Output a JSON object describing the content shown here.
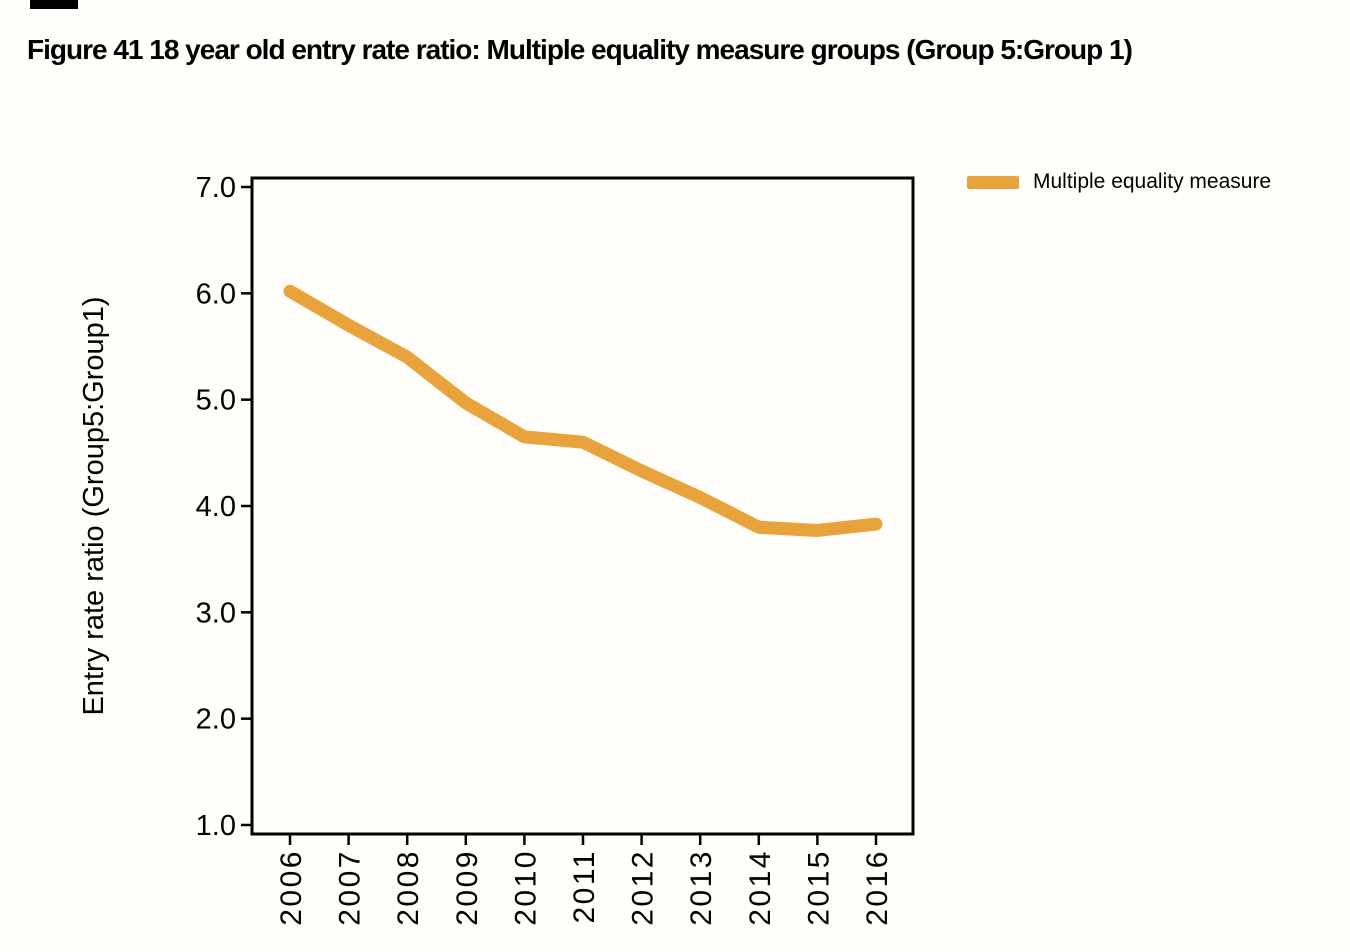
{
  "title": "Figure 41 18 year old entry rate ratio: Multiple equality measure groups (Group 5:Group 1)",
  "legend": {
    "label": "Multiple equality measure",
    "swatch_color": "#E8A33C"
  },
  "colors": {
    "line": "#E8A33C",
    "axis": "#000000",
    "text": "#000000",
    "background": "#fffefa"
  },
  "chart_data": {
    "type": "line",
    "title": "Figure 41 18 year old entry rate ratio: Multiple equality measure groups (Group 5:Group 1)",
    "xlabel": "",
    "ylabel": "Entry rate ratio (Group5:Group1)",
    "categories": [
      "2006",
      "2007",
      "2008",
      "2009",
      "2010",
      "2011",
      "2012",
      "2013",
      "2014",
      "2015",
      "2016"
    ],
    "series": [
      {
        "name": "Multiple equality measure",
        "color": "#E8A33C",
        "values": [
          6.02,
          5.7,
          5.4,
          4.97,
          4.65,
          4.6,
          4.33,
          4.08,
          3.8,
          3.77,
          3.83
        ]
      }
    ],
    "ylim": [
      1.0,
      7.0
    ],
    "ytick_labels": [
      "7.0",
      "6.0",
      "5.0",
      "4.0",
      "3.0",
      "2.0",
      "1.0"
    ],
    "grid": false,
    "legend_position": "top-right"
  }
}
